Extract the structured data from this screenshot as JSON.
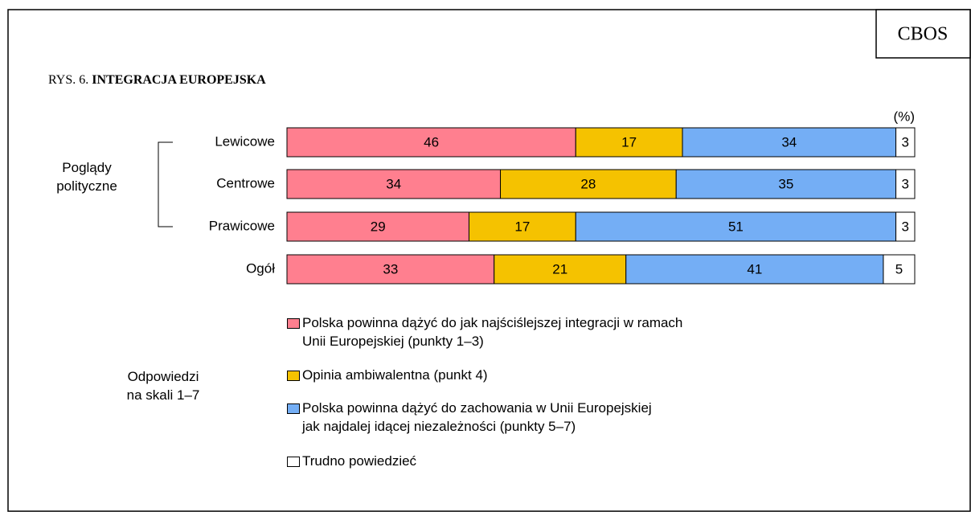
{
  "chart_data": {
    "type": "stacked-bar-horizontal",
    "brand": "CBOS",
    "figure_label": "RYS. 6.",
    "title": "INTEGRACJA EUROPEJSKA",
    "unit_label": "(%)",
    "group_label": "Poglądy\npolityczne",
    "legend_title": "Odpowiedzi\nna skali 1–7",
    "categories": [
      "Lewicowe",
      "Centrowe",
      "Prawicowe",
      "Ogół"
    ],
    "xlim": [
      0,
      100
    ],
    "series": [
      {
        "name": "Polska powinna dążyć do jak najściślejszej integracji w ramach\nUnii Europejskiej (punkty 1–3)",
        "color": "#ff7f8f",
        "values": [
          46,
          34,
          29,
          33
        ]
      },
      {
        "name": "Opinia ambiwalentna (punkt 4)",
        "color": "#f5c200",
        "values": [
          17,
          28,
          17,
          21
        ]
      },
      {
        "name": "Polska powinna dążyć do zachowania w Unii Europejskiej\njak najdalej idącej niezależności (punkty 5–7)",
        "color": "#74aef5",
        "values": [
          34,
          35,
          51,
          41
        ]
      },
      {
        "name": "Trudno powiedzieć",
        "color": "#ffffff",
        "values": [
          3,
          3,
          3,
          5
        ]
      }
    ]
  }
}
